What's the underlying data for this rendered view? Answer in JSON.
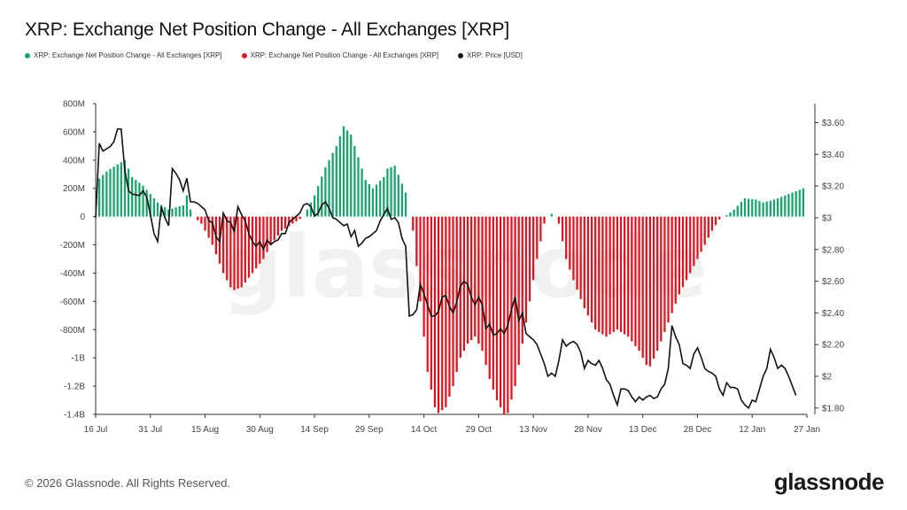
{
  "title": "XRP: Exchange Net Position Change - All Exchanges [XRP]",
  "footer": "© 2026 Glassnode. All Rights Reserved.",
  "logo": "glassnode",
  "watermark": "glassnode",
  "colors": {
    "positive": "#1aa36f",
    "negative": "#e0141e",
    "price": "#111111"
  },
  "legend": [
    {
      "label": "XRP: Exchange Net Position Change - All Exchanges [XRP]",
      "color": "#1aa36f"
    },
    {
      "label": "XRP: Exchange Net Position Change - All Exchanges [XRP]",
      "color": "#e0141e"
    },
    {
      "label": "XRP: Price [USD]",
      "color": "#111111"
    }
  ],
  "chart_data": {
    "type": "bar",
    "left_axis": {
      "ticks": [
        "800M",
        "600M",
        "400M",
        "200M",
        "0",
        "-200M",
        "-400M",
        "-600M",
        "-800M",
        "-1B",
        "-1.2B",
        "-1.4B"
      ],
      "ylim": [
        -1400000000.0,
        800000000.0
      ]
    },
    "right_axis": {
      "ticks": [
        "$3.60",
        "$3.40",
        "$3.20",
        "$3",
        "$2.80",
        "$2.60",
        "$2.40",
        "$2.20",
        "$2",
        "$1.80"
      ],
      "ylim": [
        1.76,
        3.72
      ]
    },
    "x_ticks": [
      "16 Jul",
      "31 Jul",
      "15 Aug",
      "30 Aug",
      "14 Sep",
      "29 Sep",
      "14 Oct",
      "29 Oct",
      "13 Nov",
      "28 Nov",
      "13 Dec",
      "28 Dec",
      "12 Jan",
      "27 Jan"
    ],
    "x_range_days": [
      0,
      195
    ],
    "net_position_change_anchors": [
      [
        0,
        0
      ],
      [
        1,
        270000000.0
      ],
      [
        3,
        320000000.0
      ],
      [
        6,
        370000000.0
      ],
      [
        8,
        400000000.0
      ],
      [
        10,
        280000000.0
      ],
      [
        13,
        220000000.0
      ],
      [
        17,
        100000000.0
      ],
      [
        20,
        50000000.0
      ],
      [
        24,
        80000000.0
      ],
      [
        25,
        150000000.0
      ],
      [
        26,
        50000000.0
      ],
      [
        27,
        0
      ],
      [
        29,
        -50000000.0
      ],
      [
        32,
        -200000000.0
      ],
      [
        35,
        -400000000.0
      ],
      [
        37,
        -500000000.0
      ],
      [
        38,
        -520000000.0
      ],
      [
        40,
        -500000000.0
      ],
      [
        43,
        -400000000.0
      ],
      [
        46,
        -300000000.0
      ],
      [
        48,
        -200000000.0
      ],
      [
        51,
        -100000000.0
      ],
      [
        54,
        -50000000.0
      ],
      [
        57,
        0
      ],
      [
        58,
        50000000.0
      ],
      [
        60,
        150000000.0
      ],
      [
        63,
        350000000.0
      ],
      [
        66,
        500000000.0
      ],
      [
        68,
        640000000.0
      ],
      [
        70,
        580000000.0
      ],
      [
        72,
        420000000.0
      ],
      [
        74,
        260000000.0
      ],
      [
        76,
        200000000.0
      ],
      [
        79,
        280000000.0
      ],
      [
        80,
        340000000.0
      ],
      [
        82,
        360000000.0
      ],
      [
        85,
        170000000.0
      ],
      [
        86,
        0
      ],
      [
        87,
        -100000000.0
      ],
      [
        89,
        -600000000.0
      ],
      [
        91,
        -1100000000.0
      ],
      [
        93,
        -1350000000.0
      ],
      [
        94,
        -1390000000.0
      ],
      [
        96,
        -1350000000.0
      ],
      [
        98,
        -1200000000.0
      ],
      [
        100,
        -1000000000.0
      ],
      [
        102,
        -900000000.0
      ],
      [
        104,
        -850000000.0
      ],
      [
        106,
        -950000000.0
      ],
      [
        108,
        -1150000000.0
      ],
      [
        110,
        -1300000000.0
      ],
      [
        112,
        -1400000000.0
      ],
      [
        113,
        -1390000000.0
      ],
      [
        115,
        -1200000000.0
      ],
      [
        117,
        -900000000.0
      ],
      [
        119,
        -600000000.0
      ],
      [
        121,
        -300000000.0
      ],
      [
        123,
        -50000000.0
      ],
      [
        124,
        0
      ],
      [
        125,
        20000000.0
      ],
      [
        126,
        0
      ],
      [
        127,
        -50000000.0
      ],
      [
        129,
        -300000000.0
      ],
      [
        131,
        -450000000.0
      ],
      [
        134,
        -650000000.0
      ],
      [
        137,
        -800000000.0
      ],
      [
        140,
        -850000000.0
      ],
      [
        143,
        -800000000.0
      ],
      [
        146,
        -850000000.0
      ],
      [
        149,
        -950000000.0
      ],
      [
        151,
        -1050000000.0
      ],
      [
        152,
        -1060000000.0
      ],
      [
        154,
        -950000000.0
      ],
      [
        157,
        -750000000.0
      ],
      [
        160,
        -550000000.0
      ],
      [
        163,
        -400000000.0
      ],
      [
        166,
        -250000000.0
      ],
      [
        169,
        -100000000.0
      ],
      [
        171,
        -20000000.0
      ],
      [
        172,
        0
      ],
      [
        173,
        10000000.0
      ],
      [
        175,
        50000000.0
      ],
      [
        178,
        130000000.0
      ],
      [
        181,
        120000000.0
      ],
      [
        183,
        100000000.0
      ],
      [
        186,
        120000000.0
      ],
      [
        189,
        150000000.0
      ],
      [
        192,
        180000000.0
      ],
      [
        194,
        200000000.0
      ]
    ],
    "price_usd": [
      [
        0,
        3.0
      ],
      [
        1,
        3.47
      ],
      [
        2,
        3.42
      ],
      [
        4,
        3.45
      ],
      [
        5,
        3.48
      ],
      [
        6,
        3.56
      ],
      [
        7,
        3.56
      ],
      [
        8,
        3.3
      ],
      [
        9,
        3.17
      ],
      [
        10,
        3.15
      ],
      [
        12,
        3.14
      ],
      [
        13,
        3.17
      ],
      [
        14,
        3.13
      ],
      [
        15,
        3.02
      ],
      [
        16,
        2.9
      ],
      [
        17,
        2.85
      ],
      [
        18,
        3.07
      ],
      [
        19,
        3.0
      ],
      [
        20,
        2.95
      ],
      [
        21,
        3.31
      ],
      [
        22,
        3.28
      ],
      [
        23,
        3.24
      ],
      [
        24,
        3.17
      ],
      [
        25,
        3.25
      ],
      [
        26,
        3.1
      ],
      [
        27,
        3.1
      ],
      [
        28,
        3.09
      ],
      [
        30,
        3.05
      ],
      [
        31,
        2.98
      ],
      [
        32,
        2.97
      ],
      [
        33,
        2.88
      ],
      [
        34,
        2.85
      ],
      [
        35,
        3.03
      ],
      [
        36,
        2.98
      ],
      [
        37,
        2.97
      ],
      [
        38,
        2.91
      ],
      [
        39,
        3.07
      ],
      [
        40,
        3.02
      ],
      [
        41,
        2.98
      ],
      [
        42,
        2.9
      ],
      [
        43,
        2.85
      ],
      [
        44,
        2.82
      ],
      [
        45,
        2.85
      ],
      [
        46,
        2.8
      ],
      [
        47,
        2.86
      ],
      [
        48,
        2.83
      ],
      [
        49,
        2.85
      ],
      [
        50,
        2.86
      ],
      [
        51,
        2.9
      ],
      [
        52,
        2.9
      ],
      [
        53,
        2.97
      ],
      [
        54,
        2.99
      ],
      [
        55,
        3.01
      ],
      [
        56,
        3.03
      ],
      [
        57,
        3.08
      ],
      [
        58,
        3.09
      ],
      [
        59,
        3.07
      ],
      [
        60,
        3.01
      ],
      [
        61,
        3.03
      ],
      [
        62,
        3.08
      ],
      [
        63,
        3.1
      ],
      [
        64,
        3.06
      ],
      [
        65,
        3.0
      ],
      [
        66,
        2.99
      ],
      [
        67,
        2.97
      ],
      [
        68,
        2.95
      ],
      [
        69,
        2.96
      ],
      [
        70,
        2.88
      ],
      [
        71,
        2.92
      ],
      [
        72,
        2.82
      ],
      [
        73,
        2.84
      ],
      [
        74,
        2.87
      ],
      [
        75,
        2.88
      ],
      [
        76,
        2.9
      ],
      [
        77,
        2.92
      ],
      [
        78,
        2.98
      ],
      [
        79,
        3.02
      ],
      [
        80,
        3.06
      ],
      [
        81,
        2.99
      ],
      [
        82,
        3.0
      ],
      [
        83,
        2.97
      ],
      [
        84,
        2.87
      ],
      [
        85,
        2.82
      ],
      [
        86,
        2.38
      ],
      [
        87,
        2.39
      ],
      [
        88,
        2.42
      ],
      [
        89,
        2.58
      ],
      [
        90,
        2.52
      ],
      [
        91,
        2.45
      ],
      [
        92,
        2.38
      ],
      [
        93,
        2.38
      ],
      [
        94,
        2.41
      ],
      [
        95,
        2.5
      ],
      [
        96,
        2.51
      ],
      [
        97,
        2.44
      ],
      [
        98,
        2.4
      ],
      [
        99,
        2.47
      ],
      [
        100,
        2.57
      ],
      [
        101,
        2.6
      ],
      [
        102,
        2.58
      ],
      [
        103,
        2.5
      ],
      [
        104,
        2.45
      ],
      [
        105,
        2.5
      ],
      [
        106,
        2.45
      ],
      [
        107,
        2.3
      ],
      [
        108,
        2.33
      ],
      [
        109,
        2.26
      ],
      [
        110,
        2.27
      ],
      [
        111,
        2.3
      ],
      [
        112,
        2.27
      ],
      [
        113,
        2.32
      ],
      [
        114,
        2.42
      ],
      [
        115,
        2.5
      ],
      [
        116,
        2.35
      ],
      [
        117,
        2.4
      ],
      [
        118,
        2.27
      ],
      [
        119,
        2.25
      ],
      [
        120,
        2.23
      ],
      [
        121,
        2.2
      ],
      [
        122,
        2.14
      ],
      [
        123,
        2.08
      ],
      [
        124,
        2.0
      ],
      [
        125,
        2.02
      ],
      [
        126,
        2.0
      ],
      [
        127,
        2.1
      ],
      [
        128,
        2.23
      ],
      [
        129,
        2.19
      ],
      [
        130,
        2.21
      ],
      [
        131,
        2.22
      ],
      [
        132,
        2.2
      ],
      [
        133,
        2.15
      ],
      [
        134,
        2.05
      ],
      [
        135,
        2.1
      ],
      [
        136,
        2.08
      ],
      [
        137,
        2.07
      ],
      [
        138,
        2.1
      ],
      [
        139,
        2.05
      ],
      [
        140,
        1.98
      ],
      [
        141,
        1.95
      ],
      [
        142,
        1.88
      ],
      [
        143,
        1.82
      ],
      [
        144,
        1.92
      ],
      [
        145,
        1.92
      ],
      [
        146,
        1.91
      ],
      [
        147,
        1.87
      ],
      [
        148,
        1.84
      ],
      [
        149,
        1.87
      ],
      [
        150,
        1.85
      ],
      [
        151,
        1.87
      ],
      [
        152,
        1.88
      ],
      [
        153,
        1.86
      ],
      [
        154,
        1.87
      ],
      [
        155,
        1.92
      ],
      [
        156,
        1.95
      ],
      [
        157,
        2.05
      ],
      [
        158,
        2.32
      ],
      [
        159,
        2.25
      ],
      [
        160,
        2.2
      ],
      [
        161,
        2.08
      ],
      [
        162,
        2.07
      ],
      [
        163,
        2.05
      ],
      [
        164,
        2.14
      ],
      [
        165,
        2.18
      ],
      [
        166,
        2.12
      ],
      [
        167,
        2.05
      ],
      [
        168,
        2.03
      ],
      [
        169,
        2.02
      ],
      [
        170,
        2.0
      ],
      [
        171,
        1.92
      ],
      [
        172,
        1.88
      ],
      [
        173,
        1.96
      ],
      [
        174,
        1.93
      ],
      [
        175,
        1.93
      ],
      [
        176,
        1.92
      ],
      [
        177,
        1.85
      ],
      [
        178,
        1.82
      ],
      [
        179,
        1.8
      ],
      [
        180,
        1.85
      ],
      [
        181,
        1.84
      ],
      [
        182,
        1.92
      ],
      [
        183,
        2.0
      ],
      [
        184,
        2.05
      ],
      [
        185,
        2.17
      ],
      [
        186,
        2.12
      ],
      [
        187,
        2.05
      ],
      [
        188,
        2.07
      ],
      [
        189,
        2.05
      ],
      [
        190,
        2.0
      ],
      [
        191,
        1.94
      ],
      [
        192,
        1.88
      ]
    ]
  }
}
